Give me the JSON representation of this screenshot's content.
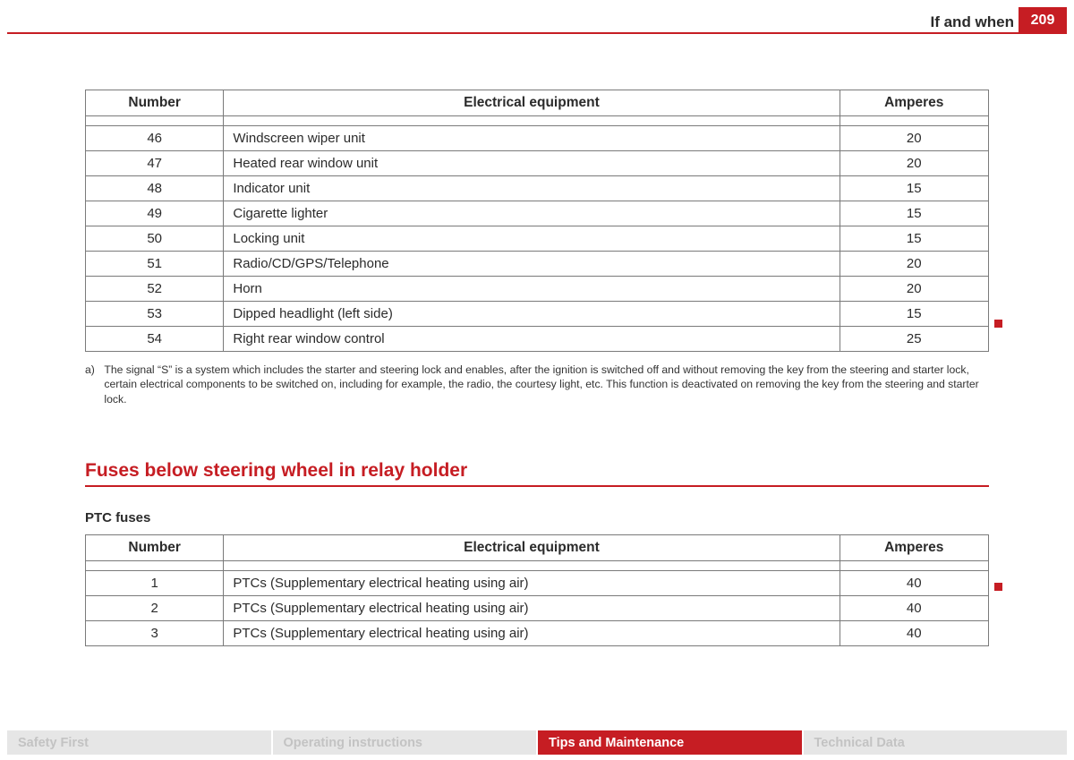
{
  "header": {
    "section_title": "If and when",
    "page_number": "209"
  },
  "colors": {
    "accent": "#c61d23",
    "text": "#2b2b2b",
    "table_border": "#7a7a7a",
    "tab_inactive_bg": "#e6e6e6",
    "tab_inactive_text": "#c3c3c3",
    "background": "#ffffff"
  },
  "table1": {
    "columns": [
      "Number",
      "Electrical equipment",
      "Amperes"
    ],
    "rows": [
      [
        "46",
        "Windscreen wiper unit",
        "20"
      ],
      [
        "47",
        "Heated rear window unit",
        "20"
      ],
      [
        "48",
        "Indicator unit",
        "15"
      ],
      [
        "49",
        "Cigarette lighter",
        "15"
      ],
      [
        "50",
        "Locking unit",
        "15"
      ],
      [
        "51",
        "Radio/CD/GPS/Telephone",
        "20"
      ],
      [
        "52",
        "Horn",
        "20"
      ],
      [
        "53",
        "Dipped headlight (left side)",
        "15"
      ],
      [
        "54",
        "Right rear window control",
        "25"
      ]
    ]
  },
  "footnote": {
    "marker": "a)",
    "text": "The signal “S” is a system which includes the starter and steering lock and enables, after the ignition is switched off and without removing the key from the steering and starter lock, certain electrical components to be switched on, including for example, the radio, the courtesy light, etc. This function is deactivated on removing the key from the steering and starter lock."
  },
  "section2": {
    "heading": "Fuses below steering wheel in relay holder",
    "subheading": "PTC fuses"
  },
  "table2": {
    "columns": [
      "Number",
      "Electrical equipment",
      "Amperes"
    ],
    "rows": [
      [
        "1",
        "PTCs (Supplementary electrical heating using air)",
        "40"
      ],
      [
        "2",
        "PTCs (Supplementary electrical heating using air)",
        "40"
      ],
      [
        "3",
        "PTCs (Supplementary electrical heating using air)",
        "40"
      ]
    ]
  },
  "tabs": {
    "items": [
      {
        "label": "Safety First",
        "active": false
      },
      {
        "label": "Operating instructions",
        "active": false
      },
      {
        "label": "Tips and Maintenance",
        "active": true
      },
      {
        "label": "Technical Data",
        "active": false
      }
    ]
  }
}
